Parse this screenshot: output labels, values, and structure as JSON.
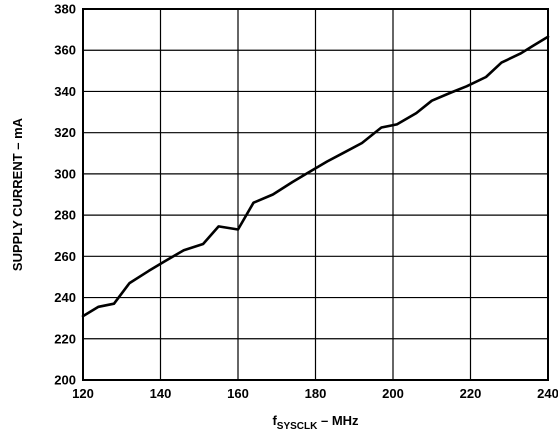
{
  "chart_data": {
    "type": "line",
    "title": "",
    "xlabel": {
      "main": "f",
      "subscript": "SYSCLK",
      "suffix": " – MHz"
    },
    "ylabel": "SUPPLY CURRENT – mA",
    "xlim": [
      120,
      240
    ],
    "ylim": [
      200,
      380
    ],
    "xticks": [
      "120",
      "140",
      "160",
      "180",
      "200",
      "220",
      "240"
    ],
    "yticks": [
      "200",
      "220",
      "240",
      "260",
      "280",
      "300",
      "320",
      "340",
      "360",
      "380"
    ],
    "grid": true,
    "legend": "none",
    "series": [
      {
        "x": [
          120,
          124,
          128,
          132,
          137,
          141,
          146,
          151,
          155,
          160,
          164,
          169,
          174,
          178,
          183,
          187,
          192,
          197,
          201,
          206,
          210,
          215,
          219,
          224,
          228,
          233,
          236,
          240
        ],
        "y": [
          231,
          235.5,
          237,
          247,
          253,
          257.5,
          263,
          266,
          274.5,
          273,
          286,
          290,
          296,
          300.5,
          306,
          310,
          315,
          322.5,
          324,
          329.5,
          335.5,
          339.5,
          342.5,
          347,
          354,
          358.5,
          362,
          366.5
        ]
      }
    ]
  }
}
